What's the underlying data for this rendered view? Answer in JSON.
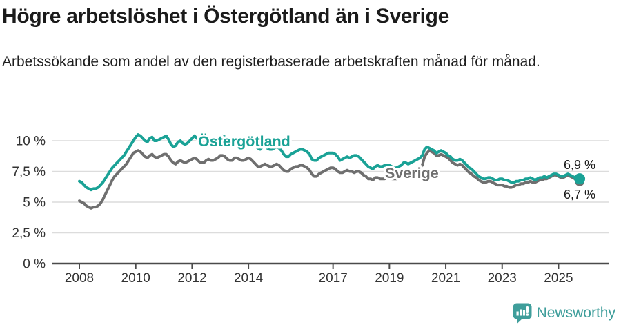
{
  "header": {
    "title": "Högre arbetslöshet i Östergötland än i Sverige",
    "subtitle": "Arbetssökande som andel av den registerbaserade arbetskraften månad för månad."
  },
  "chart_data": {
    "type": "line",
    "title": "Högre arbetslöshet i Östergötland än i Sverige",
    "subtitle": "Arbetssökande som andel av den registerbaserade arbetskraften månad för månad.",
    "unit": "%",
    "x_interval": "monthly",
    "x_start_year": 2008,
    "xlim": [
      2008,
      2025.83
    ],
    "ylim": [
      0,
      11
    ],
    "grid": "horizontal",
    "legend_position": "inline-labels",
    "x_ticks": [
      2008,
      2010,
      2012,
      2014,
      2017,
      2019,
      2021,
      2023,
      2025
    ],
    "y_ticks": [
      {
        "value": 0,
        "label": "0 %"
      },
      {
        "value": 2.5,
        "label": "2,5 %"
      },
      {
        "value": 5,
        "label": "5 %"
      },
      {
        "value": 7.5,
        "label": "7,5 %"
      },
      {
        "value": 10,
        "label": "10 %"
      }
    ],
    "series": [
      {
        "id": "ostergotland",
        "name": "Östergötland",
        "color": "#1aa296",
        "end_label": "6,9 %",
        "latest_value": 6.9,
        "values": [
          6.7,
          6.6,
          6.4,
          6.2,
          6.1,
          6.0,
          6.1,
          6.1,
          6.2,
          6.4,
          6.6,
          6.9,
          7.2,
          7.5,
          7.8,
          8.0,
          8.2,
          8.4,
          8.6,
          8.8,
          9.1,
          9.4,
          9.7,
          10.0,
          10.3,
          10.5,
          10.4,
          10.2,
          10.0,
          9.9,
          10.2,
          10.3,
          10.0,
          10.0,
          10.1,
          10.2,
          10.3,
          10.4,
          10.1,
          9.7,
          9.5,
          9.6,
          9.9,
          10.0,
          9.8,
          9.7,
          9.8,
          10.0,
          10.2,
          10.4,
          10.2,
          9.9,
          9.7,
          9.8,
          10.0,
          10.1,
          9.9,
          9.8,
          9.9,
          10.1,
          10.3,
          10.4,
          10.3,
          10.0,
          9.8,
          9.9,
          10.1,
          10.2,
          10.0,
          9.9,
          9.9,
          10.0,
          10.1,
          10.1,
          9.9,
          9.6,
          9.4,
          9.3,
          9.5,
          9.6,
          9.4,
          9.3,
          9.3,
          9.4,
          9.5,
          9.4,
          9.2,
          8.9,
          8.7,
          8.7,
          8.9,
          9.0,
          9.1,
          9.2,
          9.3,
          9.3,
          9.2,
          9.1,
          8.9,
          8.5,
          8.4,
          8.4,
          8.6,
          8.7,
          8.8,
          8.9,
          9.0,
          9.0,
          9.0,
          8.9,
          8.7,
          8.4,
          8.5,
          8.6,
          8.7,
          8.6,
          8.7,
          8.8,
          8.8,
          8.7,
          8.5,
          8.3,
          8.1,
          7.9,
          7.8,
          7.7,
          7.9,
          8.0,
          7.9,
          7.9,
          8.0,
          8.0,
          8.0,
          7.9,
          7.8,
          7.8,
          7.9,
          8.0,
          8.2,
          8.2,
          8.1,
          8.2,
          8.3,
          8.4,
          8.5,
          8.6,
          8.8,
          9.3,
          9.5,
          9.4,
          9.3,
          9.2,
          9.0,
          9.1,
          9.2,
          9.1,
          9.0,
          8.8,
          8.7,
          8.5,
          8.4,
          8.4,
          8.5,
          8.4,
          8.2,
          8.0,
          7.8,
          7.7,
          7.5,
          7.3,
          7.1,
          7.0,
          6.9,
          6.9,
          7.0,
          7.0,
          6.9,
          6.8,
          6.8,
          6.9,
          6.9,
          6.8,
          6.8,
          6.7,
          6.6,
          6.6,
          6.7,
          6.7,
          6.8,
          6.8,
          6.9,
          6.9,
          7.0,
          6.9,
          6.8,
          6.9,
          7.0,
          7.0,
          7.1,
          7.0,
          7.1,
          7.2,
          7.3,
          7.3,
          7.2,
          7.1,
          7.1,
          7.2,
          7.3,
          7.2,
          7.1,
          7.0,
          7.0,
          6.9
        ]
      },
      {
        "id": "sverige",
        "name": "Sverige",
        "color": "#6f6f6f",
        "end_label": "6,7 %",
        "latest_value": 6.7,
        "values": [
          5.1,
          5.0,
          4.9,
          4.7,
          4.6,
          4.5,
          4.6,
          4.6,
          4.7,
          4.9,
          5.2,
          5.6,
          6.0,
          6.4,
          6.8,
          7.1,
          7.3,
          7.5,
          7.7,
          7.9,
          8.1,
          8.4,
          8.7,
          9.0,
          9.1,
          9.2,
          9.1,
          8.9,
          8.7,
          8.6,
          8.8,
          8.9,
          8.7,
          8.6,
          8.7,
          8.8,
          8.9,
          8.9,
          8.7,
          8.4,
          8.2,
          8.1,
          8.3,
          8.4,
          8.3,
          8.2,
          8.3,
          8.4,
          8.5,
          8.6,
          8.5,
          8.3,
          8.2,
          8.2,
          8.4,
          8.5,
          8.4,
          8.4,
          8.5,
          8.6,
          8.8,
          8.8,
          8.7,
          8.5,
          8.4,
          8.4,
          8.6,
          8.6,
          8.5,
          8.4,
          8.4,
          8.5,
          8.6,
          8.5,
          8.3,
          8.1,
          7.9,
          7.9,
          8.0,
          8.1,
          8.0,
          7.9,
          7.9,
          8.0,
          8.1,
          8.0,
          7.8,
          7.6,
          7.5,
          7.5,
          7.7,
          7.8,
          7.9,
          7.9,
          8.0,
          8.0,
          7.9,
          7.8,
          7.6,
          7.3,
          7.1,
          7.1,
          7.3,
          7.4,
          7.5,
          7.6,
          7.7,
          7.8,
          7.8,
          7.7,
          7.5,
          7.4,
          7.4,
          7.5,
          7.6,
          7.5,
          7.5,
          7.4,
          7.5,
          7.5,
          7.4,
          7.2,
          7.1,
          6.9,
          6.9,
          6.8,
          7.0,
          7.0,
          6.9,
          6.9,
          6.9,
          7.0,
          7.0,
          6.9,
          6.9,
          6.9,
          6.9,
          7.0,
          7.1,
          7.1,
          7.0,
          7.1,
          7.2,
          7.4,
          7.6,
          7.7,
          8.0,
          8.7,
          9.0,
          9.2,
          9.1,
          9.0,
          8.8,
          8.8,
          8.9,
          8.8,
          8.7,
          8.6,
          8.4,
          8.2,
          8.1,
          8.0,
          8.1,
          8.0,
          7.8,
          7.6,
          7.4,
          7.3,
          7.1,
          7.0,
          6.8,
          6.7,
          6.6,
          6.6,
          6.7,
          6.7,
          6.6,
          6.5,
          6.4,
          6.4,
          6.4,
          6.3,
          6.3,
          6.2,
          6.2,
          6.3,
          6.4,
          6.4,
          6.5,
          6.5,
          6.6,
          6.6,
          6.7,
          6.6,
          6.6,
          6.7,
          6.8,
          6.8,
          6.9,
          6.9,
          7.0,
          7.1,
          7.2,
          7.2,
          7.1,
          7.0,
          7.0,
          7.1,
          7.2,
          7.1,
          7.0,
          6.9,
          6.8,
          6.7
        ]
      }
    ]
  },
  "footer": {
    "brand": "Newsworthy",
    "brand_color": "#3f9e9b",
    "logo_icon": "bar-chart-speech-bubble-icon"
  }
}
